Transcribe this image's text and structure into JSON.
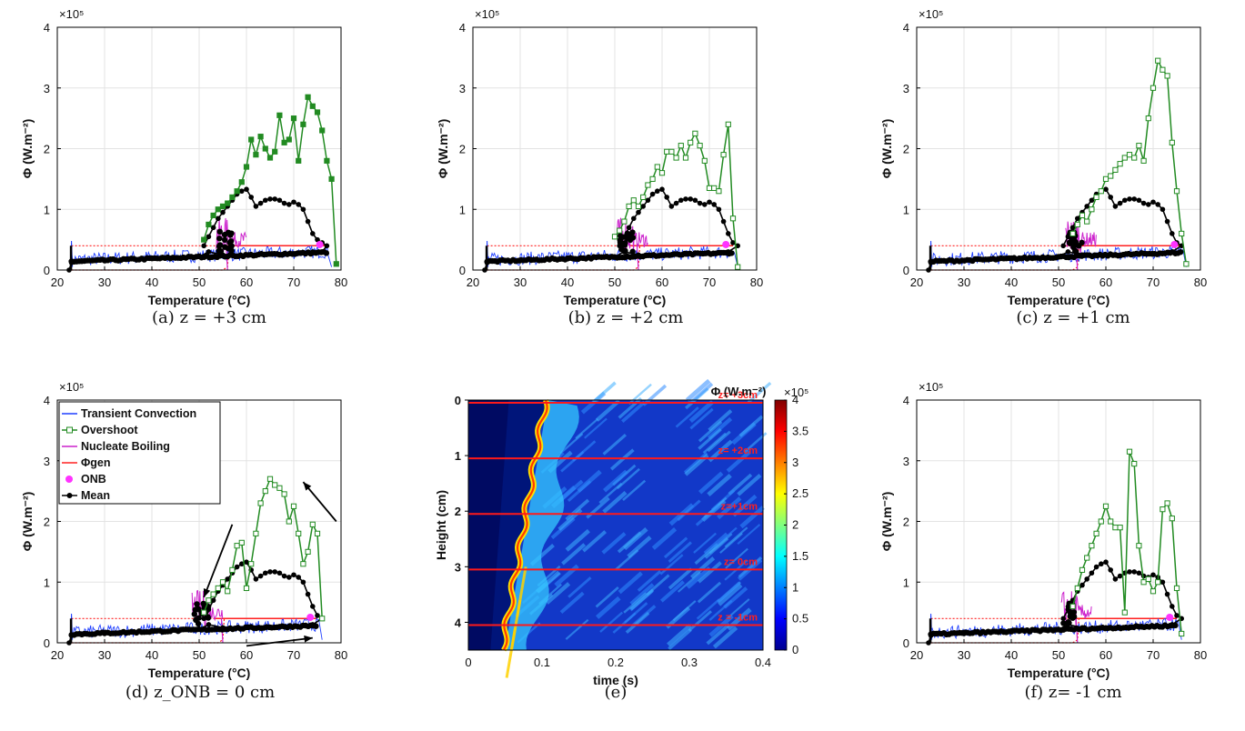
{
  "colors": {
    "convection": "#1f3fff",
    "overshoot": "#228b22",
    "boiling": "#cc22cc",
    "phi_gen": "#ff2020",
    "onb": "#ff33ff",
    "mean": "#000000"
  },
  "chart_data": [
    {
      "id": "a",
      "type": "line",
      "caption": "(a) z = +3 cm",
      "xlabel": "Temperature (°C)",
      "ylabel": "Φ (W.m⁻²)",
      "y_multiplier": "×10⁵",
      "xlim": [
        20,
        80
      ],
      "ylim": [
        0,
        4
      ],
      "xticks": [
        "20",
        "30",
        "40",
        "50",
        "60",
        "70",
        "80"
      ],
      "yticks": [
        "0",
        "1",
        "2",
        "3",
        "4"
      ],
      "grid": true,
      "series": [
        {
          "key": "overshoot",
          "x": [
            51,
            52,
            53,
            54,
            55,
            56,
            57,
            58,
            59,
            60,
            61,
            62,
            63,
            64,
            65,
            66,
            67,
            68,
            69,
            70,
            71,
            72,
            73,
            74,
            75,
            76,
            77,
            78,
            79
          ],
          "y": [
            0.5,
            0.75,
            0.9,
            1.0,
            1.05,
            1.1,
            1.2,
            1.3,
            1.45,
            1.7,
            2.15,
            1.9,
            2.2,
            2.0,
            1.85,
            1.95,
            2.55,
            2.1,
            2.15,
            2.5,
            1.8,
            2.4,
            2.85,
            2.7,
            2.6,
            2.3,
            1.8,
            1.5,
            0.1
          ]
        },
        {
          "key": "mean",
          "x": [
            51,
            52,
            53,
            54,
            55,
            56,
            57,
            58,
            59,
            60,
            61,
            62,
            63,
            64,
            65,
            66,
            67,
            68,
            69,
            70,
            71,
            72,
            73,
            74,
            75,
            76,
            77,
            76,
            74,
            72,
            70,
            65,
            60,
            55,
            52,
            50,
            40,
            30,
            25,
            23,
            22.5
          ],
          "y": [
            0.4,
            0.55,
            0.7,
            0.85,
            0.95,
            1.05,
            1.15,
            1.25,
            1.3,
            1.33,
            1.2,
            1.05,
            1.1,
            1.15,
            1.17,
            1.17,
            1.15,
            1.1,
            1.08,
            1.12,
            1.08,
            1.0,
            0.8,
            0.6,
            0.5,
            0.45,
            0.4,
            0.3,
            0.3,
            0.28,
            0.27,
            0.26,
            0.25,
            0.25,
            0.3,
            0.22,
            0.2,
            0.15,
            0.15,
            0.12,
            0.0
          ]
        }
      ],
      "onb_peak": 55,
      "phi_gen_level": 0.4,
      "transition": 56,
      "end_x": 78
    },
    {
      "id": "b",
      "type": "line",
      "caption": "(b) z = +2 cm",
      "xlabel": "Temperature (°C)",
      "ylabel": "Φ (W.m⁻²)",
      "y_multiplier": "×10⁵",
      "xlim": [
        20,
        80
      ],
      "ylim": [
        0,
        4
      ],
      "xticks": [
        "20",
        "30",
        "40",
        "50",
        "60",
        "70",
        "80"
      ],
      "yticks": [
        "0",
        "1",
        "2",
        "3",
        "4"
      ],
      "grid": true,
      "series": [
        {
          "key": "overshoot",
          "x": [
            50,
            51,
            52,
            53,
            54,
            55,
            56,
            57,
            58,
            59,
            60,
            61,
            62,
            63,
            64,
            65,
            66,
            67,
            68,
            69,
            70,
            71,
            72,
            73,
            74,
            75,
            76
          ],
          "y": [
            0.55,
            0.65,
            0.8,
            1.05,
            1.15,
            1.05,
            1.2,
            1.4,
            1.5,
            1.7,
            1.6,
            1.95,
            1.95,
            1.85,
            2.05,
            1.85,
            2.1,
            2.25,
            2.05,
            1.8,
            1.35,
            1.35,
            1.3,
            1.9,
            2.4,
            0.85,
            0.05
          ]
        },
        {
          "key": "mean",
          "x": [
            51,
            52,
            53,
            54,
            55,
            56,
            57,
            58,
            59,
            60,
            61,
            62,
            63,
            64,
            65,
            66,
            67,
            68,
            69,
            70,
            71,
            72,
            73,
            74,
            75,
            76,
            74,
            70,
            65,
            60,
            55,
            52,
            50,
            40,
            30,
            25,
            23,
            22.5
          ],
          "y": [
            0.4,
            0.55,
            0.7,
            0.85,
            0.95,
            1.05,
            1.15,
            1.25,
            1.3,
            1.33,
            1.2,
            1.05,
            1.1,
            1.15,
            1.17,
            1.17,
            1.15,
            1.1,
            1.08,
            1.12,
            1.08,
            1.0,
            0.8,
            0.6,
            0.45,
            0.4,
            0.3,
            0.27,
            0.26,
            0.25,
            0.25,
            0.3,
            0.22,
            0.2,
            0.15,
            0.15,
            0.12,
            0.0
          ]
        }
      ],
      "onb_peak": 52,
      "phi_gen_level": 0.4,
      "transition": 55,
      "end_x": 76
    },
    {
      "id": "c",
      "type": "line",
      "caption": "(c) z = +1 cm",
      "xlabel": "Temperature (°C)",
      "ylabel": "Φ (W.m⁻²)",
      "y_multiplier": "×10⁵",
      "xlim": [
        20,
        80
      ],
      "ylim": [
        0,
        4
      ],
      "xticks": [
        "20",
        "30",
        "40",
        "50",
        "60",
        "70",
        "80"
      ],
      "yticks": [
        "0",
        "1",
        "2",
        "3",
        "4"
      ],
      "grid": true,
      "series": [
        {
          "key": "overshoot",
          "x": [
            53,
            54,
            55,
            56,
            57,
            58,
            59,
            60,
            61,
            62,
            63,
            64,
            65,
            66,
            67,
            68,
            69,
            70,
            71,
            72,
            73,
            74,
            75,
            76,
            77
          ],
          "y": [
            0.6,
            0.75,
            0.9,
            0.8,
            1.0,
            1.2,
            1.3,
            1.5,
            1.55,
            1.65,
            1.75,
            1.85,
            1.9,
            1.85,
            2.05,
            1.8,
            2.5,
            3.0,
            3.45,
            3.3,
            3.2,
            2.1,
            1.3,
            0.6,
            0.1
          ]
        },
        {
          "key": "mean",
          "x": [
            51,
            52,
            53,
            54,
            55,
            56,
            57,
            58,
            59,
            60,
            61,
            62,
            63,
            64,
            65,
            66,
            67,
            68,
            69,
            70,
            71,
            72,
            73,
            74,
            75,
            76,
            74,
            70,
            65,
            60,
            55,
            52,
            50,
            40,
            30,
            25,
            23,
            22.5
          ],
          "y": [
            0.4,
            0.55,
            0.7,
            0.85,
            0.95,
            1.05,
            1.15,
            1.25,
            1.3,
            1.33,
            1.2,
            1.05,
            1.1,
            1.15,
            1.17,
            1.17,
            1.15,
            1.1,
            1.08,
            1.12,
            1.08,
            1.0,
            0.8,
            0.6,
            0.45,
            0.4,
            0.3,
            0.27,
            0.26,
            0.25,
            0.25,
            0.3,
            0.22,
            0.2,
            0.15,
            0.15,
            0.12,
            0.0
          ]
        }
      ],
      "onb_peak": 53,
      "phi_gen_level": 0.4,
      "transition": 54,
      "end_x": 77
    },
    {
      "id": "d",
      "type": "line",
      "caption": "(d) z_ONB = 0 cm",
      "xlabel": "Temperature (°C)",
      "ylabel": "Φ (W.m⁻²)",
      "y_multiplier": "×10⁵",
      "xlim": [
        20,
        80
      ],
      "ylim": [
        0,
        4
      ],
      "xticks": [
        "20",
        "30",
        "40",
        "50",
        "60",
        "70",
        "80"
      ],
      "yticks": [
        "0",
        "1",
        "2",
        "3",
        "4"
      ],
      "grid": true,
      "legend": {
        "placement": "top-left",
        "entries": [
          "Transient Convection",
          "Overshoot",
          "Nucleate Boiling",
          "Φgen",
          "ONB",
          "Mean"
        ]
      },
      "series": [
        {
          "key": "overshoot",
          "x": [
            51,
            52,
            53,
            54,
            55,
            56,
            57,
            58,
            59,
            60,
            61,
            62,
            63,
            64,
            65,
            66,
            67,
            68,
            69,
            70,
            71,
            72,
            73,
            74,
            75,
            76
          ],
          "y": [
            0.5,
            0.7,
            0.8,
            0.9,
            1.0,
            0.85,
            1.2,
            1.6,
            1.65,
            0.9,
            1.3,
            1.8,
            2.3,
            2.5,
            2.7,
            2.6,
            2.55,
            2.45,
            2.0,
            2.25,
            1.8,
            1.3,
            1.5,
            1.95,
            1.8,
            0.4
          ]
        },
        {
          "key": "mean",
          "x": [
            51,
            52,
            53,
            54,
            55,
            56,
            57,
            58,
            59,
            60,
            61,
            62,
            63,
            64,
            65,
            66,
            67,
            68,
            69,
            70,
            71,
            72,
            73,
            74,
            75,
            76,
            74,
            70,
            65,
            60,
            55,
            52,
            50,
            40,
            30,
            25,
            23,
            22.5
          ],
          "y": [
            0.4,
            0.55,
            0.7,
            0.85,
            0.95,
            1.05,
            1.15,
            1.25,
            1.3,
            1.33,
            1.2,
            1.05,
            1.1,
            1.15,
            1.17,
            1.17,
            1.15,
            1.1,
            1.08,
            1.12,
            1.08,
            1.0,
            0.8,
            0.6,
            0.45,
            0.4,
            0.3,
            0.27,
            0.26,
            0.25,
            0.25,
            0.3,
            0.22,
            0.2,
            0.15,
            0.15,
            0.12,
            0.0
          ]
        }
      ],
      "onb_peak": 50,
      "phi_gen_level": 0.4,
      "transition": 55,
      "end_x": 76
    },
    {
      "id": "e",
      "type": "heatmap",
      "caption": "(e)",
      "xlabel": "time (s)",
      "ylabel": "Height (cm)",
      "xlim": [
        0,
        0.4
      ],
      "ylim": [
        0,
        4.5
      ],
      "xticks": [
        "0",
        "0.1",
        "0.2",
        "0.3",
        "0.4"
      ],
      "yticks": [
        "0",
        "1",
        "2",
        "3",
        "4"
      ],
      "colorbar": {
        "title": "Φ (W.m⁻²)",
        "multiplier": "×10⁵",
        "min": 0,
        "max": 4,
        "ticks": [
          "0",
          "0.5",
          "1",
          "1.5",
          "2",
          "2.5",
          "3",
          "3.5",
          "4"
        ]
      },
      "lines": [
        {
          "height": 0.05,
          "label": "z= +3cm"
        },
        {
          "height": 1.05,
          "label": "z= +2cm"
        },
        {
          "height": 2.05,
          "label": "z=+1cm"
        },
        {
          "height": 3.05,
          "label": "z= 0cm"
        },
        {
          "height": 4.05,
          "label": "z = -1cm"
        }
      ]
    },
    {
      "id": "f",
      "type": "line",
      "caption": "(f)  z= -1 cm",
      "xlabel": "Temperature (°C)",
      "ylabel": "Φ (W.m⁻²)",
      "y_multiplier": "×10⁵",
      "xlim": [
        20,
        80
      ],
      "ylim": [
        0,
        4
      ],
      "xticks": [
        "20",
        "30",
        "40",
        "50",
        "60",
        "70",
        "80"
      ],
      "yticks": [
        "0",
        "1",
        "2",
        "3",
        "4"
      ],
      "grid": true,
      "series": [
        {
          "key": "overshoot",
          "x": [
            53,
            54,
            55,
            56,
            57,
            58,
            59,
            60,
            61,
            62,
            63,
            64,
            65,
            66,
            67,
            68,
            69,
            70,
            71,
            72,
            73,
            74,
            75,
            76
          ],
          "y": [
            0.6,
            0.9,
            1.2,
            1.4,
            1.6,
            1.8,
            2.0,
            2.25,
            2.0,
            1.9,
            1.9,
            0.5,
            3.15,
            2.95,
            1.6,
            1.0,
            1.05,
            0.85,
            1.0,
            2.2,
            2.3,
            2.05,
            0.9,
            0.15
          ]
        },
        {
          "key": "mean",
          "x": [
            51,
            52,
            53,
            54,
            55,
            56,
            57,
            58,
            59,
            60,
            61,
            62,
            63,
            64,
            65,
            66,
            67,
            68,
            69,
            70,
            71,
            72,
            73,
            74,
            75,
            76,
            74,
            70,
            65,
            60,
            55,
            52,
            50,
            40,
            30,
            25,
            23,
            22.5
          ],
          "y": [
            0.4,
            0.55,
            0.7,
            0.85,
            0.95,
            1.05,
            1.15,
            1.25,
            1.3,
            1.33,
            1.2,
            1.05,
            1.1,
            1.15,
            1.17,
            1.17,
            1.15,
            1.1,
            1.08,
            1.12,
            1.08,
            1.0,
            0.8,
            0.6,
            0.45,
            0.4,
            0.3,
            0.27,
            0.26,
            0.25,
            0.25,
            0.3,
            0.22,
            0.2,
            0.15,
            0.15,
            0.12,
            0.0
          ]
        }
      ],
      "onb_peak": 52,
      "phi_gen_level": 0.4,
      "transition": 54,
      "end_x": 76
    }
  ]
}
